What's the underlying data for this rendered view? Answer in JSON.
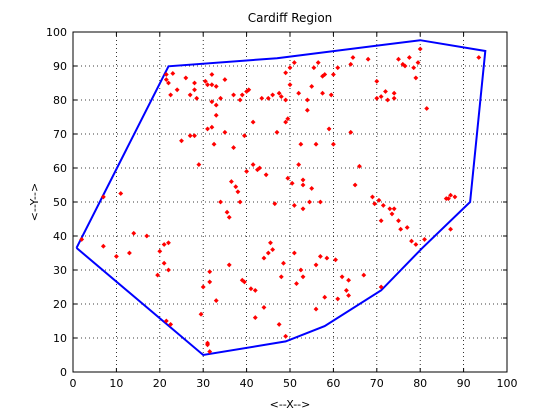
{
  "chart_data": {
    "type": "scatter",
    "title": "Cardiff Region",
    "xlabel": "<--X-->",
    "ylabel": "<--Y-->",
    "xlim": [
      0,
      100
    ],
    "ylim": [
      0,
      100
    ],
    "xticks": [
      0,
      10,
      20,
      30,
      40,
      50,
      60,
      70,
      80,
      90,
      100
    ],
    "yticks": [
      0,
      10,
      20,
      30,
      40,
      50,
      60,
      70,
      80,
      90,
      100
    ],
    "grid": true,
    "hull_color": "#0000ff",
    "point_color": "#ff0000",
    "hull": [
      [
        0.8,
        36.5
      ],
      [
        22,
        89.9
      ],
      [
        47,
        92.3
      ],
      [
        80,
        97.6
      ],
      [
        95,
        94.4
      ],
      [
        91.5,
        50
      ],
      [
        80.5,
        36.5
      ],
      [
        71,
        24
      ],
      [
        58,
        13.5
      ],
      [
        49,
        9
      ],
      [
        30,
        5
      ],
      [
        0.8,
        36.5
      ]
    ],
    "points": [
      [
        2,
        39
      ],
      [
        7,
        51.5
      ],
      [
        7,
        37
      ],
      [
        10,
        34
      ],
      [
        11,
        52.5
      ],
      [
        13,
        35
      ],
      [
        14,
        40.8
      ],
      [
        17,
        40
      ],
      [
        19.5,
        28.5
      ],
      [
        20,
        35.5
      ],
      [
        21,
        37.5
      ],
      [
        21,
        32
      ],
      [
        21.5,
        15
      ],
      [
        22,
        38
      ],
      [
        22.5,
        14
      ],
      [
        22,
        30
      ],
      [
        21.5,
        86
      ],
      [
        21.5,
        87.5
      ],
      [
        22,
        85
      ],
      [
        22.5,
        81.5
      ],
      [
        23,
        87.8
      ],
      [
        24,
        83
      ],
      [
        25,
        68
      ],
      [
        26,
        86.5
      ],
      [
        27,
        69.5
      ],
      [
        27,
        81.5
      ],
      [
        28,
        69.5
      ],
      [
        28,
        85
      ],
      [
        28,
        83
      ],
      [
        28.5,
        80.5
      ],
      [
        29,
        61
      ],
      [
        29.5,
        17
      ],
      [
        30,
        25
      ],
      [
        30.5,
        85.5
      ],
      [
        31,
        8
      ],
      [
        31.5,
        6
      ],
      [
        31,
        84.5
      ],
      [
        32,
        84.5
      ],
      [
        31.5,
        26.5
      ],
      [
        32,
        72
      ],
      [
        32,
        87.5
      ],
      [
        33,
        75.5
      ],
      [
        32.5,
        67
      ],
      [
        31,
        8.5
      ],
      [
        31.5,
        29.5
      ],
      [
        31,
        71.5
      ],
      [
        32,
        79.5
      ],
      [
        33,
        84
      ],
      [
        33,
        21
      ],
      [
        33,
        78.5
      ],
      [
        34,
        80.5
      ],
      [
        34,
        50
      ],
      [
        35,
        70.5
      ],
      [
        35,
        86
      ],
      [
        35.5,
        47
      ],
      [
        36,
        31.5
      ],
      [
        36,
        45.5
      ],
      [
        36.5,
        56
      ],
      [
        37,
        66
      ],
      [
        37,
        81.5
      ],
      [
        37.5,
        54.5
      ],
      [
        38,
        53
      ],
      [
        38.5,
        80
      ],
      [
        38.5,
        50
      ],
      [
        39,
        27
      ],
      [
        39,
        81.5
      ],
      [
        39.5,
        26.5
      ],
      [
        39.5,
        69.5
      ],
      [
        40,
        59
      ],
      [
        40,
        82.5
      ],
      [
        40.5,
        83
      ],
      [
        41,
        24.5
      ],
      [
        41.5,
        61
      ],
      [
        41.5,
        73.5
      ],
      [
        42,
        16
      ],
      [
        42,
        24
      ],
      [
        42.5,
        59.5
      ],
      [
        43,
        60
      ],
      [
        43.5,
        80.5
      ],
      [
        44,
        33.5
      ],
      [
        44,
        19
      ],
      [
        44.5,
        58
      ],
      [
        45,
        35
      ],
      [
        45,
        80.5
      ],
      [
        45.5,
        38
      ],
      [
        46,
        36
      ],
      [
        46,
        81.5
      ],
      [
        46.5,
        49.5
      ],
      [
        47,
        70.5
      ],
      [
        47.5,
        82
      ],
      [
        47.5,
        14
      ],
      [
        48,
        81
      ],
      [
        48,
        28
      ],
      [
        48.5,
        32
      ],
      [
        49,
        73.5
      ],
      [
        49,
        10.5
      ],
      [
        49,
        80
      ],
      [
        49.5,
        57
      ],
      [
        49.5,
        74.5
      ],
      [
        49,
        88
      ],
      [
        50,
        84.5
      ],
      [
        50,
        89.5
      ],
      [
        50.5,
        55.5
      ],
      [
        51,
        49
      ],
      [
        51,
        91
      ],
      [
        51,
        35
      ],
      [
        51.5,
        26
      ],
      [
        52,
        61
      ],
      [
        52,
        82
      ],
      [
        52.5,
        67
      ],
      [
        52.5,
        30
      ],
      [
        53,
        56.5
      ],
      [
        53,
        55
      ],
      [
        53,
        48
      ],
      [
        53,
        28
      ],
      [
        54,
        80
      ],
      [
        54,
        77
      ],
      [
        54.5,
        50
      ],
      [
        55,
        54
      ],
      [
        55,
        84
      ],
      [
        55.5,
        89.5
      ],
      [
        56,
        67
      ],
      [
        56,
        18.5
      ],
      [
        56,
        31.5
      ],
      [
        56.5,
        91
      ],
      [
        57,
        34
      ],
      [
        57,
        50
      ],
      [
        57.5,
        82
      ],
      [
        57.5,
        87
      ],
      [
        58,
        22
      ],
      [
        58,
        87.5
      ],
      [
        58.5,
        33.5
      ],
      [
        59,
        71.5
      ],
      [
        59.5,
        81.5
      ],
      [
        60,
        87.5
      ],
      [
        60,
        67
      ],
      [
        60.5,
        33
      ],
      [
        61,
        89.5
      ],
      [
        61,
        21.5
      ],
      [
        62,
        28
      ],
      [
        63,
        24
      ],
      [
        63.5,
        22.5
      ],
      [
        63.5,
        27
      ],
      [
        64,
        90.5
      ],
      [
        64,
        70.5
      ],
      [
        64.5,
        92.5
      ],
      [
        65,
        55
      ],
      [
        66,
        60.5
      ],
      [
        67,
        28.5
      ],
      [
        68,
        92
      ],
      [
        69,
        51.5
      ],
      [
        69.5,
        49.5
      ],
      [
        70,
        80.5
      ],
      [
        70,
        85.5
      ],
      [
        70.5,
        50.5
      ],
      [
        71,
        25
      ],
      [
        71,
        44.5
      ],
      [
        71,
        81
      ],
      [
        71.5,
        49
      ],
      [
        72,
        82.5
      ],
      [
        72.5,
        80
      ],
      [
        73,
        48
      ],
      [
        73.5,
        46.5
      ],
      [
        74,
        80.5
      ],
      [
        74,
        48
      ],
      [
        74,
        82
      ],
      [
        75,
        92
      ],
      [
        75,
        44.5
      ],
      [
        75.5,
        42
      ],
      [
        76,
        90.5
      ],
      [
        76.5,
        90
      ],
      [
        77,
        42.5
      ],
      [
        77.5,
        92.5
      ],
      [
        78,
        38.5
      ],
      [
        78.5,
        89.5
      ],
      [
        79,
        37.5
      ],
      [
        79,
        86.5
      ],
      [
        79.5,
        91
      ],
      [
        80,
        95
      ],
      [
        81,
        39
      ],
      [
        81.5,
        77.5
      ],
      [
        86,
        51
      ],
      [
        86.5,
        51
      ],
      [
        87,
        52
      ],
      [
        87,
        42
      ],
      [
        88,
        51.5
      ],
      [
        93.5,
        92.5
      ]
    ]
  }
}
